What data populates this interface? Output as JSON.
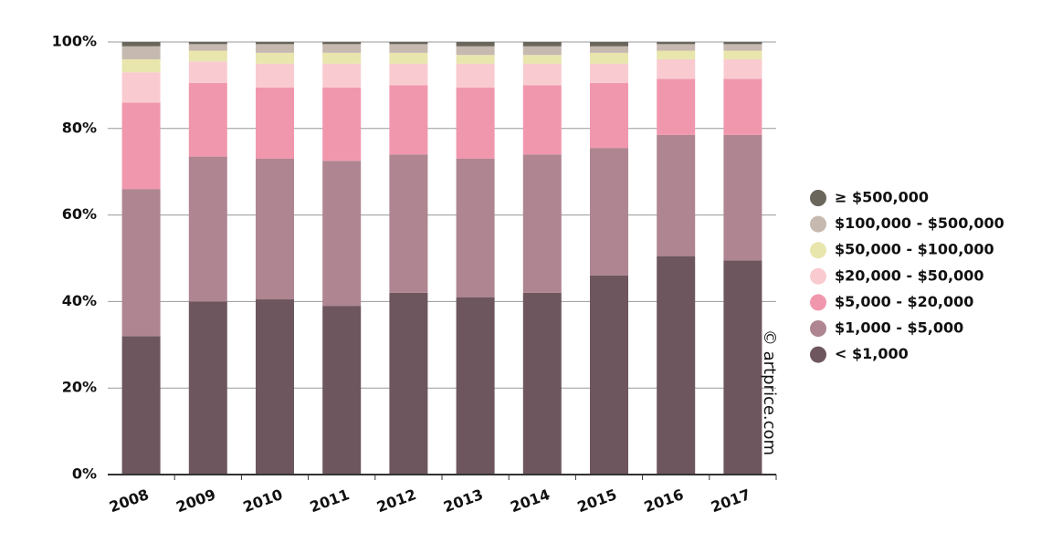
{
  "chart_data": {
    "type": "stacked_bar",
    "categories": [
      "2008",
      "2009",
      "2010",
      "2011",
      "2012",
      "2013",
      "2014",
      "2015",
      "2016",
      "2017"
    ],
    "series": [
      {
        "name": "< $1,000",
        "color": "#6d565e",
        "values": [
          32,
          40,
          40.5,
          39,
          42,
          41,
          42,
          46,
          50.5,
          49.5
        ]
      },
      {
        "name": "$1,000 - $5,000",
        "color": "#ae8590",
        "values": [
          34,
          33.5,
          32.5,
          33.5,
          32,
          32,
          32,
          29.5,
          28,
          29
        ]
      },
      {
        "name": "$5,000 - $20,000",
        "color": "#f097ae",
        "values": [
          20,
          17,
          16.5,
          17,
          16,
          16.5,
          16,
          15,
          13,
          13
        ]
      },
      {
        "name": "$20,000 - $50,000",
        "color": "#f9cbd0",
        "values": [
          7,
          5,
          5.5,
          5.5,
          5,
          5.5,
          5,
          4.5,
          4.5,
          4.5
        ]
      },
      {
        "name": "$50,000 - $100,000",
        "color": "#e8e5ad",
        "values": [
          3,
          2.5,
          2.5,
          2.5,
          2.5,
          2,
          2,
          2.5,
          2,
          2
        ]
      },
      {
        "name": "$100,000 - $500,000",
        "color": "#c6b9b0",
        "values": [
          3,
          1.5,
          2,
          2,
          2,
          2,
          2,
          1.5,
          1.5,
          1.5
        ]
      },
      {
        "name": "≥ $500,000",
        "color": "#6b665c",
        "values": [
          1,
          0.5,
          0.5,
          0.5,
          0.5,
          1,
          1,
          1,
          0.5,
          0.5
        ]
      }
    ],
    "ylim": [
      0,
      100
    ],
    "yticks": [
      {
        "value": 0,
        "label": "0%"
      },
      {
        "value": 20,
        "label": "20%"
      },
      {
        "value": 40,
        "label": "40%"
      },
      {
        "value": 60,
        "label": "60%"
      },
      {
        "value": 80,
        "label": "80%"
      },
      {
        "value": 100,
        "label": "100%"
      }
    ],
    "grid": true,
    "legend": "right",
    "source": "© artprice.com"
  }
}
